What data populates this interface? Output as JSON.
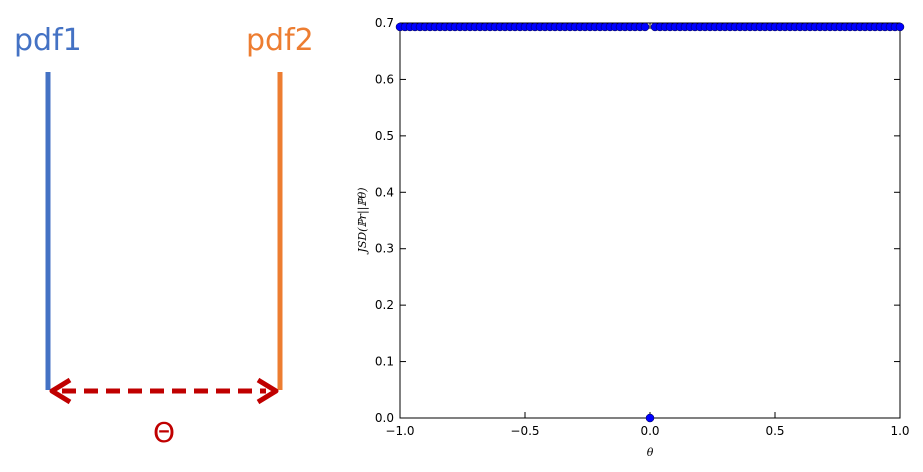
{
  "diagram": {
    "pdf1_label": "pdf1",
    "pdf2_label": "pdf2",
    "theta_label": "Θ",
    "colors": {
      "pdf1": "#4472c4",
      "pdf2": "#ed7d31",
      "arrow": "#c00000"
    }
  },
  "chart_data": {
    "type": "scatter",
    "title": "",
    "xlabel": "θ",
    "ylabel": "JSD(ℙr||ℙθ)",
    "xlim": [
      -1.0,
      1.0
    ],
    "ylim": [
      0.0,
      0.7
    ],
    "xticks": [
      "−1.0",
      "−0.5",
      "0.0",
      "0.5",
      "1.0"
    ],
    "xtick_values": [
      -1.0,
      -0.5,
      0.0,
      0.5,
      1.0
    ],
    "yticks": [
      "0.0",
      "0.1",
      "0.2",
      "0.3",
      "0.4",
      "0.5",
      "0.6",
      "0.7"
    ],
    "ytick_values": [
      0.0,
      0.1,
      0.2,
      0.3,
      0.4,
      0.5,
      0.6,
      0.7
    ],
    "grid": false,
    "marker_color": "#0000ff",
    "series": [
      {
        "x_range": [
          -1.0,
          1.0
        ],
        "n_points": 101,
        "value_nonzero": 0.693,
        "value_at_zero": 0.0
      }
    ]
  }
}
